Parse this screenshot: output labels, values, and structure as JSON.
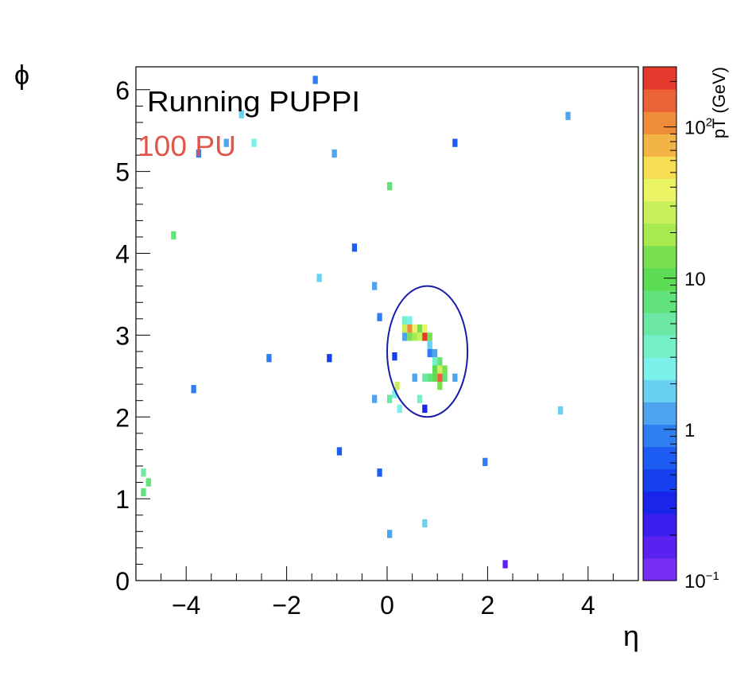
{
  "chart_data": {
    "type": "heatmap",
    "xlabel": "η",
    "ylabel": "ϕ",
    "annotations": [
      {
        "text": "Running PUPPI",
        "color": "#000000"
      },
      {
        "text": "100 PU",
        "color": "#e0574a"
      }
    ],
    "xlim": [
      -5,
      5
    ],
    "ylim": [
      0,
      6.28
    ],
    "x_ticks": [
      -4,
      -2,
      0,
      2,
      4
    ],
    "y_ticks": [
      0,
      1,
      2,
      3,
      4,
      5,
      6
    ],
    "colorbar": {
      "label": "pT (GeV)",
      "scale": "log",
      "range": [
        0.1,
        250
      ],
      "ticks": [
        {
          "value": 0.1,
          "base": "10",
          "exp": "−1"
        },
        {
          "value": 1,
          "base": "1",
          "exp": ""
        },
        {
          "value": 10,
          "base": "10",
          "exp": ""
        },
        {
          "value": 100,
          "base": "10",
          "exp": "2"
        }
      ]
    },
    "jet_circle": {
      "eta": 0.8,
      "phi": 2.8,
      "r_eta": 0.8,
      "r_phi": 0.8,
      "color": "#1a1aaa"
    },
    "cell_size": {
      "eta": 0.1,
      "phi": 0.1
    },
    "cells": [
      {
        "eta": -1.43,
        "phi": 6.12,
        "pt": 0.9
      },
      {
        "eta": -2.9,
        "phi": 5.7,
        "pt": 2.0
      },
      {
        "eta": 3.6,
        "phi": 5.68,
        "pt": 1.5
      },
      {
        "eta": -3.2,
        "phi": 5.35,
        "pt": 1.1
      },
      {
        "eta": -2.65,
        "phi": 5.35,
        "pt": 3.0
      },
      {
        "eta": -3.75,
        "phi": 5.22,
        "pt": 0.8
      },
      {
        "eta": -1.05,
        "phi": 5.22,
        "pt": 1.1
      },
      {
        "eta": 1.35,
        "phi": 5.35,
        "pt": 0.6
      },
      {
        "eta": 0.05,
        "phi": 4.82,
        "pt": 7.0
      },
      {
        "eta": -4.25,
        "phi": 4.22,
        "pt": 6.0
      },
      {
        "eta": -0.65,
        "phi": 4.07,
        "pt": 0.7
      },
      {
        "eta": -1.35,
        "phi": 3.7,
        "pt": 1.7
      },
      {
        "eta": -0.25,
        "phi": 3.6,
        "pt": 1.1
      },
      {
        "eta": -0.15,
        "phi": 3.22,
        "pt": 0.9
      },
      {
        "eta": 0.35,
        "phi": 3.18,
        "pt": 3.5
      },
      {
        "eta": 0.45,
        "phi": 3.18,
        "pt": 2.5
      },
      {
        "eta": 0.35,
        "phi": 3.08,
        "pt": 25
      },
      {
        "eta": 0.45,
        "phi": 3.08,
        "pt": 100
      },
      {
        "eta": 0.55,
        "phi": 3.08,
        "pt": 40
      },
      {
        "eta": 0.65,
        "phi": 3.08,
        "pt": 15
      },
      {
        "eta": 0.75,
        "phi": 3.08,
        "pt": 35
      },
      {
        "eta": 0.35,
        "phi": 2.98,
        "pt": 1.2
      },
      {
        "eta": 0.45,
        "phi": 2.98,
        "pt": 15
      },
      {
        "eta": 0.55,
        "phi": 2.98,
        "pt": 20
      },
      {
        "eta": 0.65,
        "phi": 2.98,
        "pt": 30
      },
      {
        "eta": 0.75,
        "phi": 2.98,
        "pt": 250
      },
      {
        "eta": 0.85,
        "phi": 2.98,
        "pt": 12
      },
      {
        "eta": 0.85,
        "phi": 2.88,
        "pt": 2.0
      },
      {
        "eta": 0.85,
        "phi": 2.78,
        "pt": 0.9
      },
      {
        "eta": 0.95,
        "phi": 2.78,
        "pt": 1.5
      },
      {
        "eta": 0.95,
        "phi": 2.68,
        "pt": 4.0
      },
      {
        "eta": 1.05,
        "phi": 2.68,
        "pt": 8.0
      },
      {
        "eta": 0.95,
        "phi": 2.58,
        "pt": 10
      },
      {
        "eta": 1.05,
        "phi": 2.58,
        "pt": 30
      },
      {
        "eta": 1.15,
        "phi": 2.58,
        "pt": 15
      },
      {
        "eta": 0.75,
        "phi": 2.48,
        "pt": 5.0
      },
      {
        "eta": 0.85,
        "phi": 2.48,
        "pt": 6.0
      },
      {
        "eta": 0.95,
        "phi": 2.48,
        "pt": 10
      },
      {
        "eta": 1.05,
        "phi": 2.48,
        "pt": 150
      },
      {
        "eta": 1.15,
        "phi": 2.48,
        "pt": 8.0
      },
      {
        "eta": 1.35,
        "phi": 2.48,
        "pt": 1.5
      },
      {
        "eta": 0.55,
        "phi": 2.48,
        "pt": 1.1
      },
      {
        "eta": 1.05,
        "phi": 2.38,
        "pt": 12
      },
      {
        "eta": 0.2,
        "phi": 2.38,
        "pt": 30
      },
      {
        "eta": 0.15,
        "phi": 2.28,
        "pt": 3.0
      },
      {
        "eta": 0.05,
        "phi": 2.22,
        "pt": 5.0
      },
      {
        "eta": 0.65,
        "phi": 2.22,
        "pt": 3.5
      },
      {
        "eta": 0.25,
        "phi": 2.1,
        "pt": 3.0
      },
      {
        "eta": 0.75,
        "phi": 2.1,
        "pt": 0.35
      },
      {
        "eta": -0.25,
        "phi": 2.22,
        "pt": 1.2
      },
      {
        "eta": 0.15,
        "phi": 2.74,
        "pt": 0.4
      },
      {
        "eta": -2.35,
        "phi": 2.72,
        "pt": 0.9
      },
      {
        "eta": -1.15,
        "phi": 2.72,
        "pt": 0.4
      },
      {
        "eta": -3.85,
        "phi": 2.34,
        "pt": 0.8
      },
      {
        "eta": 3.45,
        "phi": 2.08,
        "pt": 2.0
      },
      {
        "eta": -0.95,
        "phi": 1.58,
        "pt": 0.7
      },
      {
        "eta": 1.95,
        "phi": 1.45,
        "pt": 0.9
      },
      {
        "eta": -0.15,
        "phi": 1.32,
        "pt": 0.6
      },
      {
        "eta": -4.85,
        "phi": 1.32,
        "pt": 5.0
      },
      {
        "eta": -4.75,
        "phi": 1.2,
        "pt": 6.0
      },
      {
        "eta": -4.85,
        "phi": 1.08,
        "pt": 6.0
      },
      {
        "eta": 0.75,
        "phi": 0.7,
        "pt": 1.8
      },
      {
        "eta": 0.05,
        "phi": 0.57,
        "pt": 1.2
      },
      {
        "eta": 2.35,
        "phi": 0.2,
        "pt": 0.15
      }
    ],
    "colors": [
      "#7a2ef5",
      "#5a22f0",
      "#3b1eee",
      "#1a24ea",
      "#1640ee",
      "#1d5cf2",
      "#2f7ef0",
      "#4fa4f0",
      "#6ad0f2",
      "#7cf0ea",
      "#74f0c8",
      "#6ce8a4",
      "#62e27a",
      "#5cdc52",
      "#78e04e",
      "#a6ea50",
      "#c8f05a",
      "#eaf464",
      "#f6de52",
      "#f2b444",
      "#ee8c3a",
      "#ea6236",
      "#e43a2e"
    ]
  }
}
